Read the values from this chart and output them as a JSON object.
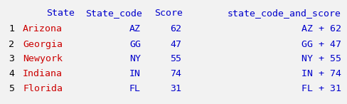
{
  "background_color": "#f2f2f2",
  "text_color_header": "#0000cc",
  "text_color_index": "#000000",
  "text_color_blue": "#0000cc",
  "text_color_red": "#cc0000",
  "font_size": 9.5,
  "header": [
    "State",
    "State_code",
    "Score",
    "state_code_and_score"
  ],
  "index": [
    "1",
    "2",
    "3",
    "4",
    "5"
  ],
  "col_State": [
    "Arizona",
    "Georgia",
    "Newyork",
    "Indiana",
    "Florida"
  ],
  "col_State_code": [
    "AZ",
    "GG",
    "NY",
    "IN",
    "FL"
  ],
  "col_Score": [
    "62",
    "47",
    "55",
    "74",
    "31"
  ],
  "col_combined": [
    "AZ + 62",
    "GG + 47",
    "NY + 55",
    "IN + 74",
    "FL + 31"
  ],
  "figsize": [
    4.89,
    1.46
  ],
  "dpi": 100
}
